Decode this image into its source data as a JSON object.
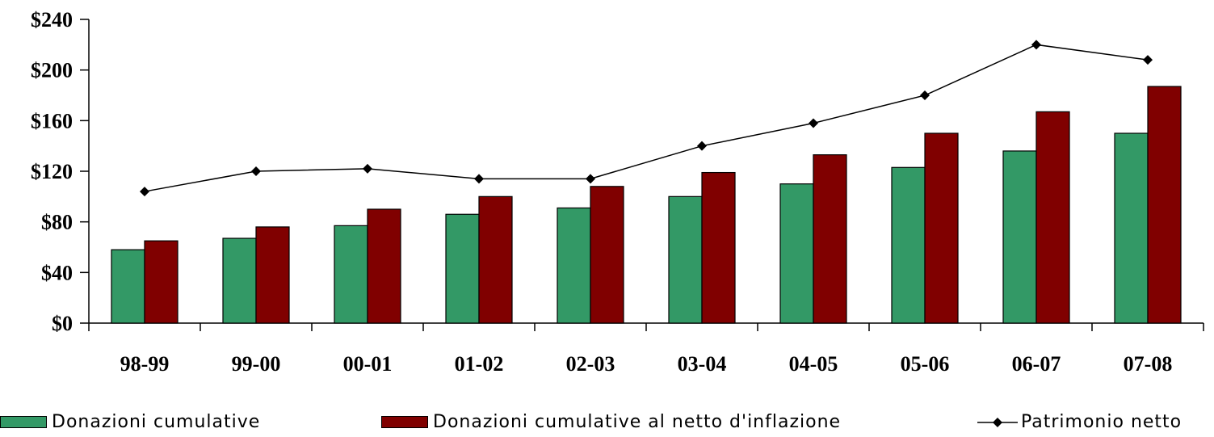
{
  "chart_data": {
    "type": "bar",
    "categories": [
      "98-99",
      "99-00",
      "00-01",
      "01-02",
      "02-03",
      "03-04",
      "04-05",
      "05-06",
      "06-07",
      "07-08"
    ],
    "series": [
      {
        "name": "Donazioni cumulative",
        "kind": "bar",
        "color": "#339966",
        "values": [
          58,
          67,
          77,
          86,
          91,
          100,
          110,
          123,
          136,
          150
        ]
      },
      {
        "name": "Donazioni cumulative  al netto d'inflazione",
        "kind": "bar",
        "color": "#800000",
        "values": [
          65,
          76,
          90,
          100,
          108,
          119,
          133,
          150,
          167,
          187
        ]
      },
      {
        "name": "Patrimonio netto",
        "kind": "line",
        "color": "#000000",
        "marker": "diamond",
        "values": [
          104,
          120,
          122,
          114,
          114,
          140,
          158,
          180,
          220,
          208
        ]
      }
    ],
    "y_ticks": [
      "$0",
      "$40",
      "$80",
      "$120",
      "$160",
      "$200",
      "$240"
    ],
    "ylim": [
      0,
      240
    ],
    "grid": false,
    "legend_position": "bottom"
  }
}
